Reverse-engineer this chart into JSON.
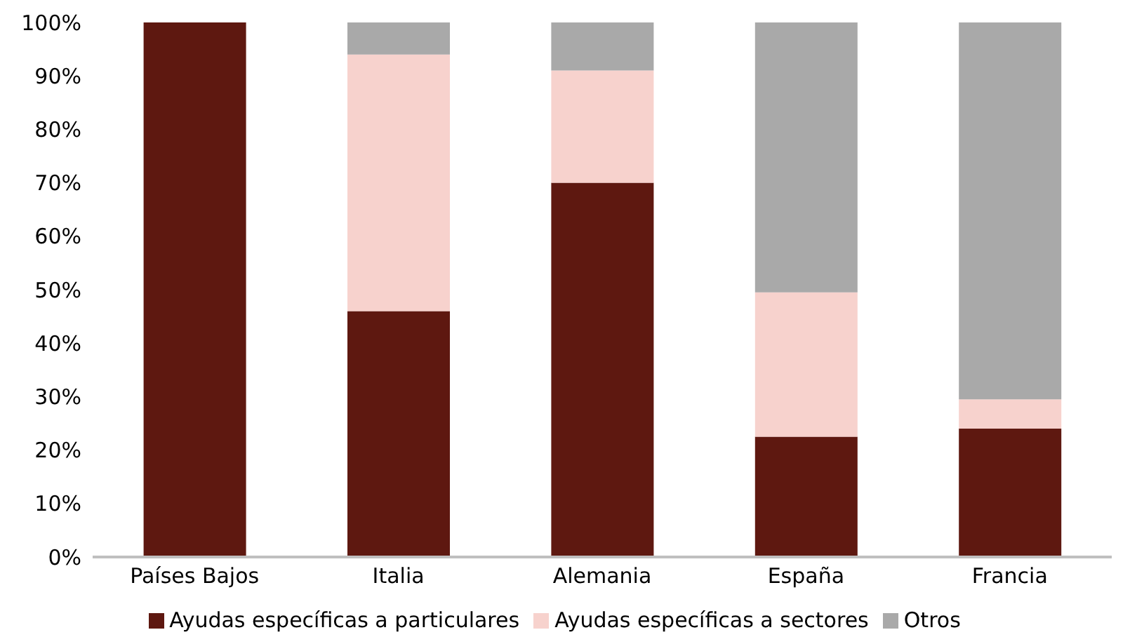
{
  "chart_data": {
    "type": "bar",
    "stacked": true,
    "categories": [
      "Países Bajos",
      "Italia",
      "Alemania",
      "España",
      "Francia"
    ],
    "series": [
      {
        "name": "Ayudas específicas a particulares",
        "color": "#5e1810",
        "values": [
          100,
          46,
          70,
          22.5,
          24
        ]
      },
      {
        "name": "Ayudas específicas a sectores",
        "color": "#f7d2cd",
        "values": [
          0,
          48,
          21,
          27,
          5.5
        ]
      },
      {
        "name": "Otros",
        "color": "#a9a9a9",
        "values": [
          0,
          6,
          9,
          50.5,
          70.5
        ]
      }
    ],
    "ylim": [
      0,
      100
    ],
    "yticks": [
      {
        "value": 0,
        "label": "0%"
      },
      {
        "value": 10,
        "label": "10%"
      },
      {
        "value": 20,
        "label": "20%"
      },
      {
        "value": 30,
        "label": "30%"
      },
      {
        "value": 40,
        "label": "40%"
      },
      {
        "value": 50,
        "label": "50%"
      },
      {
        "value": 60,
        "label": "60%"
      },
      {
        "value": 70,
        "label": "70%"
      },
      {
        "value": 80,
        "label": "80%"
      },
      {
        "value": 90,
        "label": "90%"
      },
      {
        "value": 100,
        "label": "100%"
      }
    ],
    "grid": false,
    "legend": "bottom"
  }
}
